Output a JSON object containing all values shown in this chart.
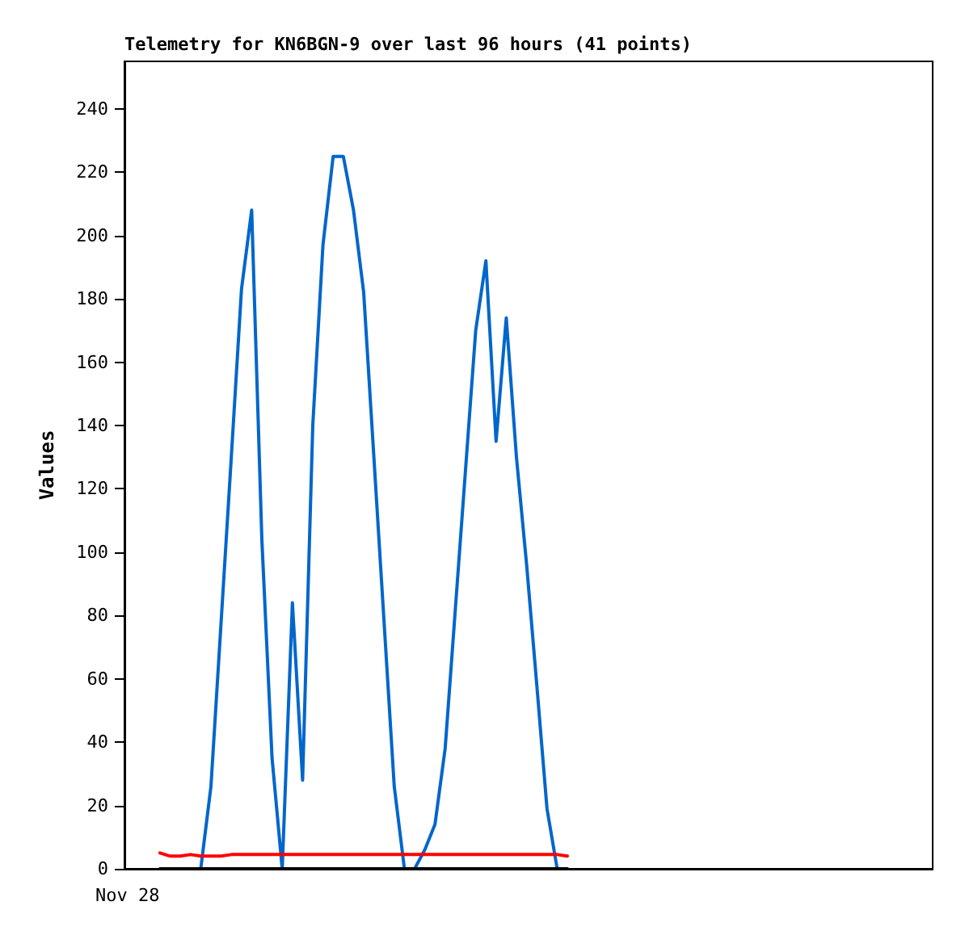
{
  "chart_data": {
    "type": "line",
    "title": "Telemetry for KN6BGN-9 over last 96 hours (41 points)",
    "ylabel": "Values",
    "categories": [
      null,
      null,
      null,
      null,
      null,
      null,
      null,
      null,
      null,
      null,
      null,
      null,
      null,
      null,
      null,
      null,
      null,
      null,
      null,
      null,
      null,
      null,
      null,
      null,
      null,
      null,
      null,
      null,
      null,
      null,
      null,
      null,
      null,
      null,
      null,
      null,
      null,
      null,
      null,
      null,
      null
    ],
    "series": [
      {
        "color": "#0066cc",
        "values": [
          null,
          null,
          null,
          null,
          0,
          26,
          78,
          130,
          183,
          208,
          104,
          35,
          0,
          84,
          28,
          140,
          197,
          225,
          225,
          208,
          182,
          130,
          78,
          26,
          0,
          0,
          6,
          14,
          38,
          82,
          126,
          170,
          192,
          135,
          174,
          130,
          96,
          58,
          19,
          0,
          null
        ]
      },
      {
        "color": "#ff0000",
        "values": [
          5,
          4,
          4,
          4.5,
          4,
          4,
          4,
          4.5,
          4.5,
          4.5,
          4.5,
          4.5,
          4.5,
          4.5,
          4.5,
          4.5,
          4.5,
          4.5,
          4.5,
          4.5,
          4.5,
          4.5,
          4.5,
          4.5,
          4.5,
          4.5,
          4.5,
          4.5,
          4.5,
          4.5,
          4.5,
          4.5,
          4.5,
          4.5,
          4.5,
          4.5,
          4.5,
          4.5,
          4.5,
          4.5,
          4
        ]
      },
      {
        "color": "#000000",
        "values": [
          0,
          0,
          0,
          0,
          0,
          0,
          0,
          0,
          0,
          0,
          0,
          0,
          0,
          0,
          0,
          0,
          0,
          0,
          0,
          0,
          0,
          0,
          0,
          0,
          0,
          0,
          0,
          0,
          0,
          0,
          0,
          0,
          0,
          0,
          0,
          0,
          0,
          0,
          0,
          0,
          0
        ]
      }
    ],
    "annotations": [
      "Nov 28"
    ],
    "ylim": [
      0,
      255
    ],
    "yticks": [
      0,
      20,
      40,
      60,
      80,
      100,
      120,
      140,
      160,
      180,
      200,
      220,
      240
    ],
    "marker": "none",
    "line_style": "solid"
  }
}
